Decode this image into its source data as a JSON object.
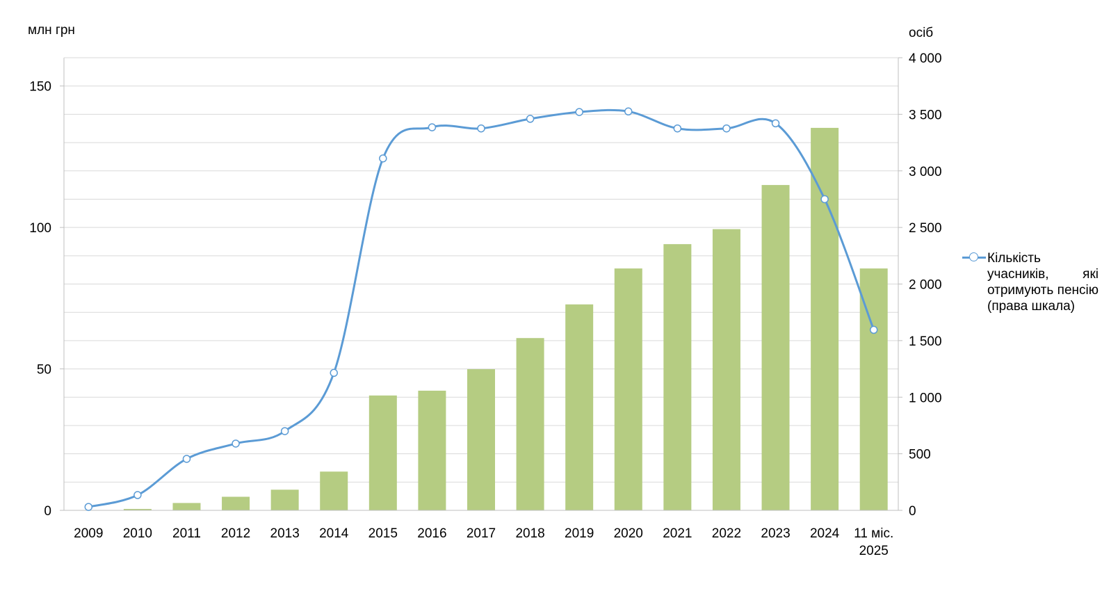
{
  "chart_data": {
    "type": "bar+line",
    "categories": [
      "2009",
      "2010",
      "2011",
      "2012",
      "2013",
      "2014",
      "2015",
      "2016",
      "2017",
      "2018",
      "2019",
      "2020",
      "2021",
      "2022",
      "2023",
      "2024",
      "11 міс. 2025"
    ],
    "series": [
      {
        "type": "bar",
        "axis": "left",
        "color": "#b5cc82",
        "values": [
          0.1,
          0.5,
          2.6,
          4.8,
          7.3,
          13.7,
          40.6,
          42.3,
          49.9,
          60.9,
          72.8,
          85.5,
          94.1,
          99.4,
          115.0,
          135.2,
          85.5
        ]
      },
      {
        "type": "line",
        "axis": "right",
        "name": "Кількість учасників, які отримують пенсію (права шкала)",
        "color": "#5b9bd5",
        "values": [
          30,
          135,
          455,
          590,
          700,
          1215,
          3110,
          3385,
          3375,
          3460,
          3520,
          3525,
          3375,
          3375,
          3420,
          2750,
          1595
        ]
      }
    ],
    "y_left": {
      "label": "млн грн",
      "range": [
        0,
        160
      ],
      "ticks": [
        0,
        50,
        100,
        150
      ],
      "tick_labels": [
        "0",
        "50",
        "100",
        "150"
      ]
    },
    "y_right": {
      "label": "осіб",
      "range": [
        0,
        4000
      ],
      "ticks": [
        0,
        500,
        1000,
        1500,
        2000,
        2500,
        3000,
        3500,
        4000
      ],
      "tick_labels": [
        "0",
        "500",
        "1 000",
        "1 500",
        "2 000",
        "2 500",
        "3 000",
        "3 500",
        "4 000"
      ]
    },
    "grid": true,
    "legend_position": "right"
  }
}
